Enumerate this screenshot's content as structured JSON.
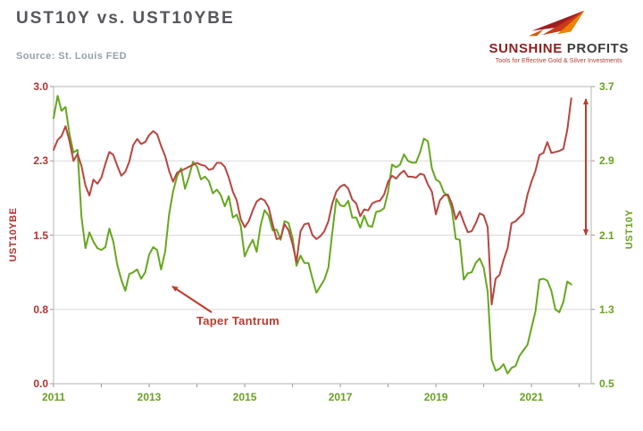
{
  "header": {
    "title": "UST10Y vs. UST10YBE",
    "source": "Source: St. Louis FED",
    "logo": {
      "brand_primary": "SUNSHINE",
      "brand_secondary": "PROFITS",
      "tagline": "Tools for Effective Gold & Silver Investments"
    }
  },
  "chart_data": {
    "type": "line",
    "title": "UST10Y vs. UST10YBE",
    "x_min": 2011,
    "x_max": 2022.25,
    "x_ticks": [
      2011,
      2013,
      2015,
      2017,
      2019,
      2021
    ],
    "grid": true,
    "grid_color": "#d9d9d9",
    "left_axis": {
      "label": "UST10YBE",
      "min": 0.0,
      "max": 3.0,
      "ticks": [
        "3.0",
        "2.3",
        "1.5",
        "0.8",
        "0.0"
      ],
      "color": "#b23230"
    },
    "right_axis": {
      "label": "UST10Y",
      "min": 0.5,
      "max": 3.7,
      "ticks": [
        "3.7",
        "2.9",
        "2.1",
        "1.3",
        "0.5"
      ],
      "color": "#6aa121"
    },
    "annotation": {
      "text": "Taper Tantrum",
      "color": "#c0392b"
    },
    "series": [
      {
        "name": "UST10Y",
        "axis": "right",
        "color": "#66a71e",
        "x_start": 2011.0,
        "x_step": 0.0833333,
        "values": [
          3.36,
          3.6,
          3.44,
          3.48,
          3.19,
          2.99,
          3.02,
          2.3,
          1.96,
          2.13,
          2.03,
          1.96,
          1.94,
          1.97,
          2.17,
          2.03,
          1.78,
          1.62,
          1.5,
          1.68,
          1.7,
          1.73,
          1.63,
          1.7,
          1.89,
          1.97,
          1.94,
          1.73,
          1.92,
          2.32,
          2.57,
          2.73,
          2.82,
          2.6,
          2.73,
          2.89,
          2.84,
          2.7,
          2.73,
          2.68,
          2.55,
          2.59,
          2.53,
          2.41,
          2.52,
          2.29,
          2.32,
          2.2,
          1.87,
          1.97,
          2.05,
          1.92,
          2.21,
          2.37,
          2.31,
          2.15,
          2.16,
          2.05,
          2.25,
          2.23,
          2.07,
          1.77,
          1.88,
          1.8,
          1.8,
          1.63,
          1.48,
          1.55,
          1.62,
          1.75,
          2.13,
          2.49,
          2.42,
          2.41,
          2.47,
          2.29,
          2.29,
          2.18,
          2.31,
          2.2,
          2.19,
          2.35,
          2.36,
          2.39,
          2.57,
          2.86,
          2.83,
          2.86,
          2.97,
          2.9,
          2.88,
          2.88,
          2.99,
          3.14,
          3.11,
          2.82,
          2.7,
          2.67,
          2.56,
          2.52,
          2.38,
          2.06,
          2.05,
          1.62,
          1.69,
          1.7,
          1.8,
          1.85,
          1.75,
          1.49,
          0.76,
          0.64,
          0.66,
          0.71,
          0.61,
          0.67,
          0.69,
          0.8,
          0.86,
          0.92,
          1.1,
          1.28,
          1.62,
          1.63,
          1.61,
          1.5,
          1.3,
          1.27,
          1.38,
          1.6,
          1.57
        ]
      },
      {
        "name": "UST10YBE",
        "axis": "left",
        "color": "#b8453f",
        "x_start": 2011.0,
        "x_step": 0.0833333,
        "values": [
          2.36,
          2.46,
          2.5,
          2.6,
          2.45,
          2.25,
          2.32,
          2.2,
          2.0,
          1.9,
          2.06,
          2.02,
          2.08,
          2.22,
          2.34,
          2.31,
          2.2,
          2.1,
          2.14,
          2.24,
          2.41,
          2.47,
          2.42,
          2.44,
          2.51,
          2.55,
          2.52,
          2.4,
          2.3,
          2.15,
          2.04,
          2.13,
          2.15,
          2.17,
          2.19,
          2.21,
          2.23,
          2.21,
          2.2,
          2.16,
          2.17,
          2.23,
          2.23,
          2.19,
          2.08,
          1.94,
          1.85,
          1.66,
          1.58,
          1.64,
          1.75,
          1.84,
          1.87,
          1.85,
          1.78,
          1.61,
          1.46,
          1.47,
          1.61,
          1.55,
          1.41,
          1.23,
          1.54,
          1.61,
          1.62,
          1.5,
          1.46,
          1.49,
          1.54,
          1.64,
          1.82,
          1.94,
          1.99,
          2.01,
          1.97,
          1.86,
          1.82,
          1.69,
          1.76,
          1.75,
          1.82,
          1.84,
          1.85,
          1.91,
          2.04,
          2.1,
          2.07,
          2.12,
          2.15,
          2.09,
          2.09,
          2.08,
          2.12,
          2.11,
          2.01,
          1.94,
          1.71,
          1.85,
          1.9,
          1.91,
          1.82,
          1.66,
          1.74,
          1.63,
          1.53,
          1.54,
          1.62,
          1.72,
          1.7,
          1.58,
          0.8,
          1.06,
          1.1,
          1.25,
          1.37,
          1.62,
          1.64,
          1.68,
          1.72,
          1.91,
          2.04,
          2.15,
          2.31,
          2.33,
          2.44,
          2.33,
          2.34,
          2.35,
          2.37,
          2.56,
          2.88
        ]
      }
    ]
  }
}
